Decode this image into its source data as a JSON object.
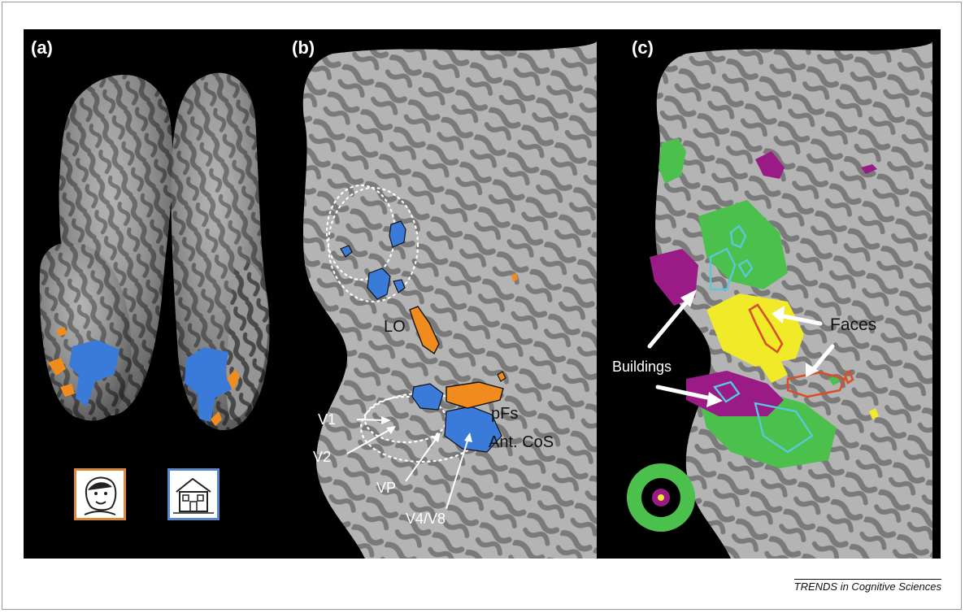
{
  "panels": {
    "a": {
      "label": "(a)"
    },
    "b": {
      "label": "(b)",
      "regions": {
        "lo": "LO",
        "pfs": "pFs",
        "ant_cos": "Ant. CoS",
        "v1": "V1",
        "v2": "V2",
        "vp": "VP",
        "v4v8": "V4/V8"
      }
    },
    "c": {
      "label": "(c)",
      "regions": {
        "faces": "Faces",
        "buildings": "Buildings"
      }
    }
  },
  "stimuli": {
    "face": "face-drawing-icon",
    "building": "house-drawing-icon"
  },
  "colors": {
    "background": "#000000",
    "cortex_light": "#b4b4b4",
    "cortex_dark": "#7a7a7a",
    "face_activation": "#f08c1e",
    "building_activation": "#3a7ad8",
    "magenta": "#9a1a86",
    "green": "#4cc04c",
    "yellow": "#f0ea28",
    "face_frame": "#d8893c",
    "building_frame": "#5a86c8"
  },
  "credit": "TRENDS in Cognitive Sciences"
}
